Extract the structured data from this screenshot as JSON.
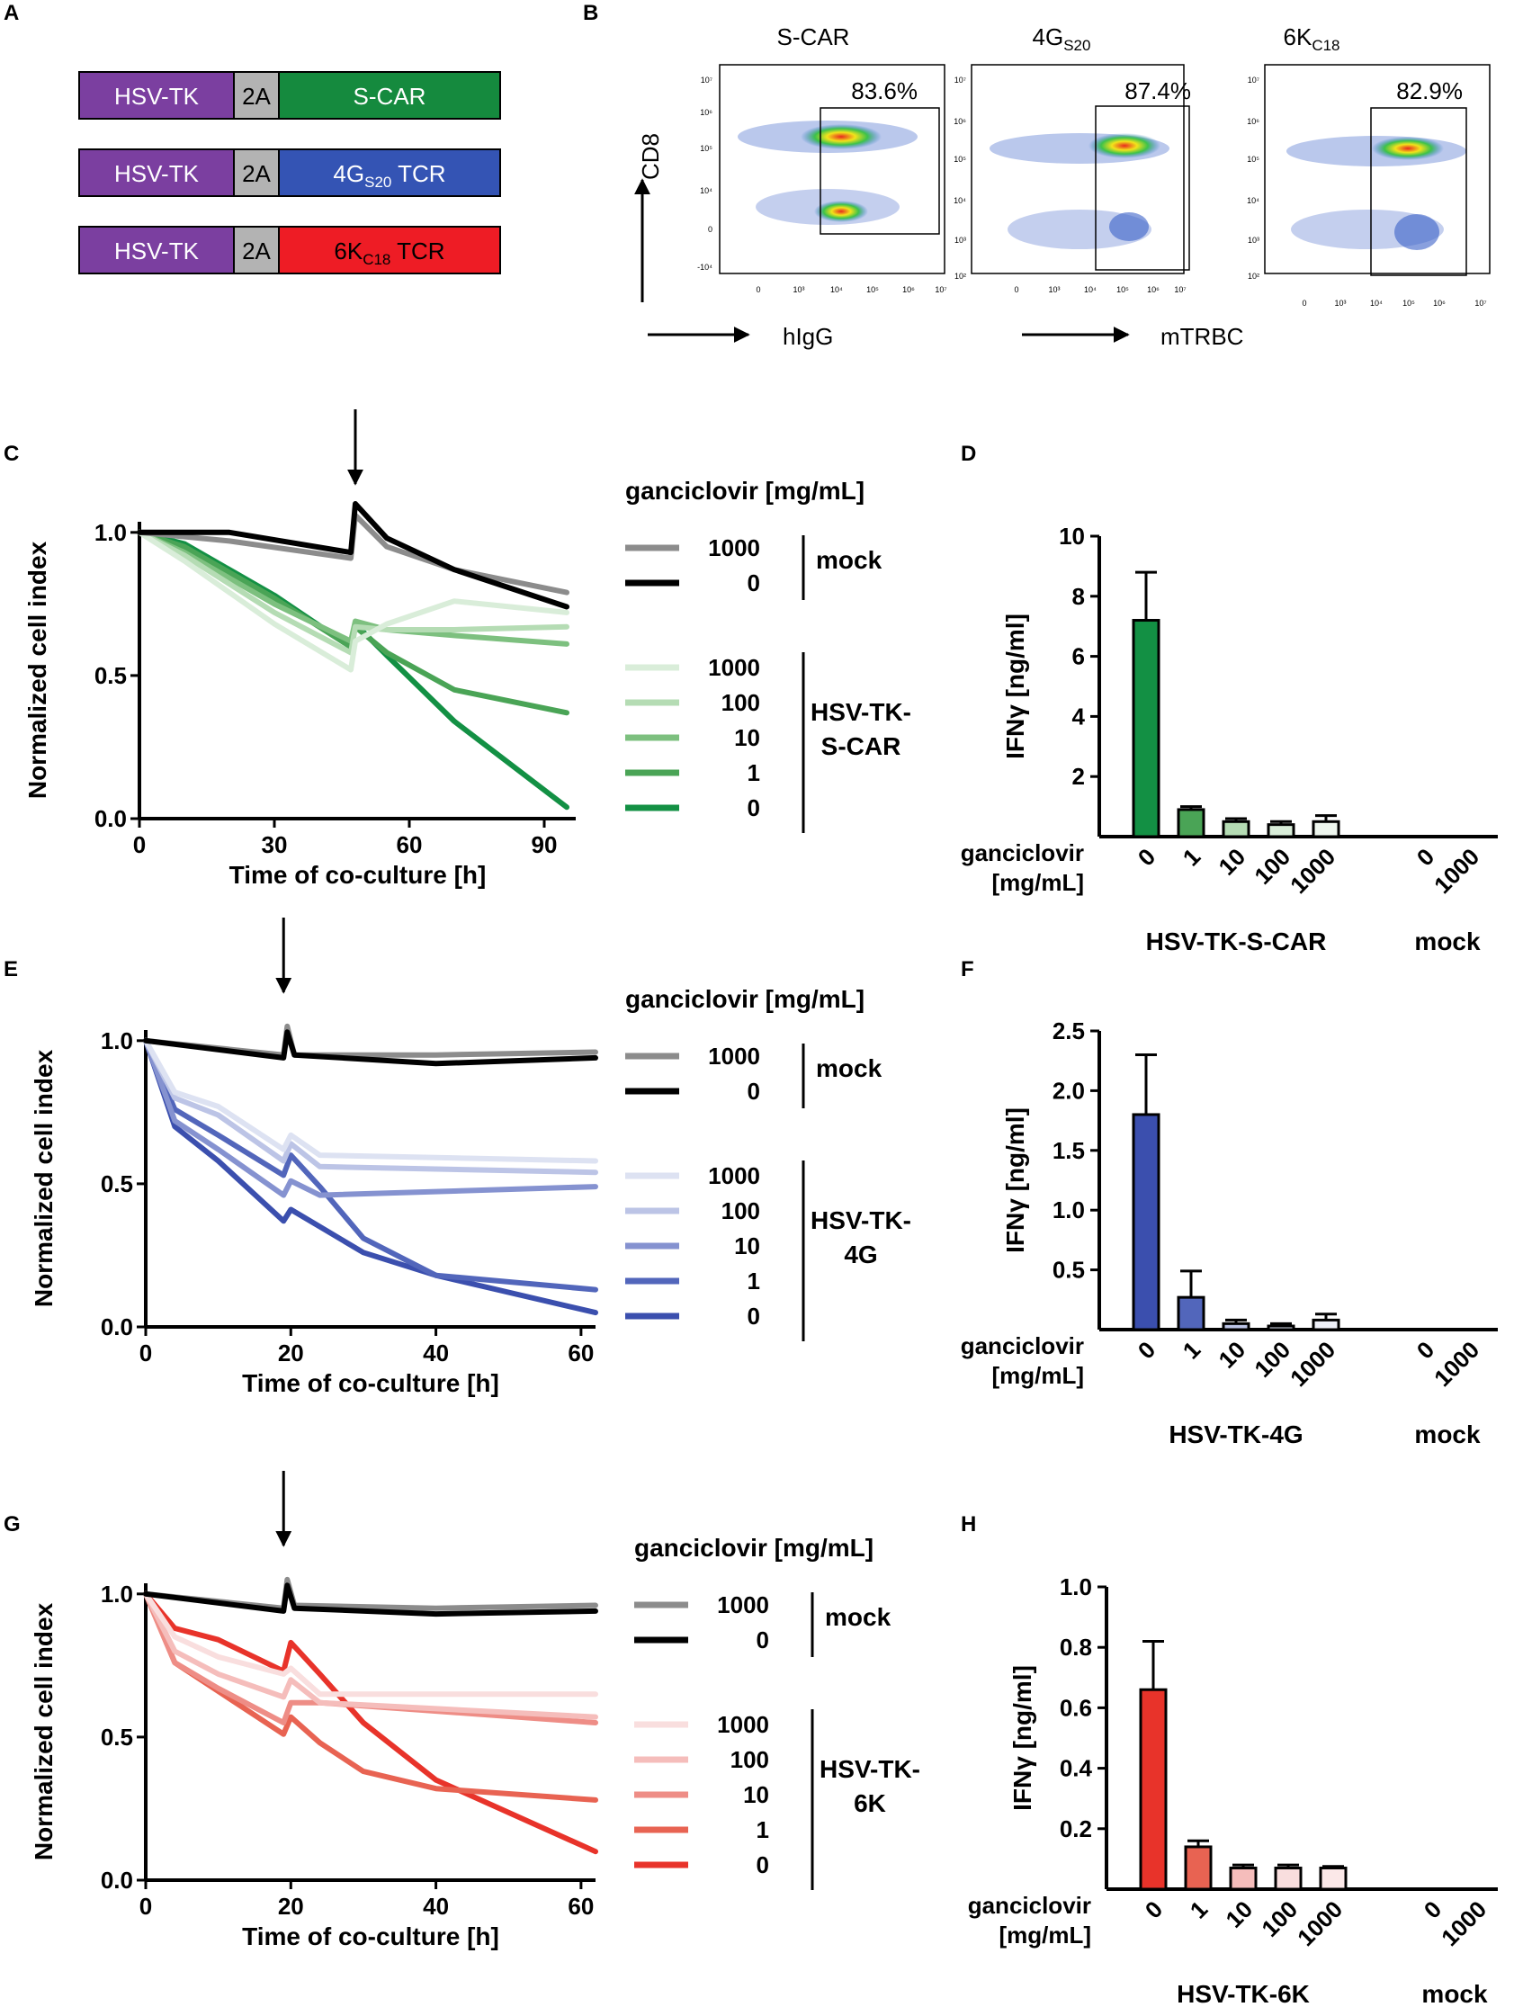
{
  "panels": {
    "A": "A",
    "B": "B",
    "C": "C",
    "D": "D",
    "E": "E",
    "F": "F",
    "G": "G",
    "H": "H"
  },
  "constructs": [
    {
      "tk": "HSV-TK",
      "twoA": "2A",
      "receptor": "S-CAR",
      "sub": "",
      "suffix": "",
      "color": "#158a3e"
    },
    {
      "tk": "HSV-TK",
      "twoA": "2A",
      "receptor": "4G",
      "sub": "S20",
      "suffix": " TCR",
      "color": "#3454b4"
    },
    {
      "tk": "HSV-TK",
      "twoA": "2A",
      "receptor": "6K",
      "sub": "C18",
      "suffix": " TCR",
      "color": "#ee1c25"
    }
  ],
  "colors": {
    "tk": "#7b3fa0",
    "twoA": "#b3b3b3"
  },
  "flow": {
    "titles": [
      {
        "main": "S-CAR",
        "sub": ""
      },
      {
        "main": "4G",
        "sub": "S20"
      },
      {
        "main": "6K",
        "sub": "C18"
      }
    ],
    "percents": [
      "83.6%",
      "87.4%",
      "82.9%"
    ],
    "y_axis_label": "CD8",
    "x_axis_labels": [
      "hIgG",
      "mTRBC"
    ],
    "x_ticks": [
      "0",
      "10³",
      "10⁴",
      "10⁵",
      "10⁶",
      "10⁷"
    ],
    "y_ticks_first": [
      "10⁷",
      "10⁶",
      "10⁵",
      "10⁴",
      "0",
      "-10⁴"
    ],
    "y_ticks_other": [
      "10⁷",
      "10⁶",
      "10⁵",
      "10⁴",
      "10³",
      "10²"
    ]
  },
  "line_charts": [
    {
      "id": "C",
      "x_ticks": [
        0,
        30,
        60,
        90
      ],
      "xlim": [
        0,
        97
      ],
      "ylim": [
        0,
        1.1
      ],
      "y_ticks": [
        "0.0",
        "0.5",
        "1.0"
      ],
      "ylabel": "Normalized cell index",
      "xlabel": "Time of co-culture [h]",
      "legend_title": "ganciclovir [mg/mL]",
      "mock_group": "mock",
      "car_group": "HSV-TK-\nS-CAR",
      "arrow_x": 48,
      "spike_x": 47,
      "mock_series": [
        {
          "label": "1000",
          "color": "#8c8c8c",
          "points": [
            [
              0,
              1.0
            ],
            [
              20,
              0.97
            ],
            [
              47,
              0.91
            ],
            [
              48,
              1.06
            ],
            [
              55,
              0.95
            ],
            [
              70,
              0.87
            ],
            [
              95,
              0.79
            ]
          ]
        },
        {
          "label": "0",
          "color": "#000000",
          "points": [
            [
              0,
              1.0
            ],
            [
              20,
              1.0
            ],
            [
              47,
              0.93
            ],
            [
              48,
              1.1
            ],
            [
              55,
              0.98
            ],
            [
              70,
              0.87
            ],
            [
              95,
              0.74
            ]
          ]
        }
      ],
      "treated_series": [
        {
          "label": "1000",
          "color": "#d9edd9",
          "points": [
            [
              0,
              1.0
            ],
            [
              10,
              0.9
            ],
            [
              30,
              0.68
            ],
            [
              47,
              0.52
            ],
            [
              48,
              0.62
            ],
            [
              55,
              0.68
            ],
            [
              70,
              0.76
            ],
            [
              95,
              0.72
            ]
          ]
        },
        {
          "label": "100",
          "color": "#b5dcb4",
          "points": [
            [
              0,
              1.0
            ],
            [
              10,
              0.92
            ],
            [
              30,
              0.72
            ],
            [
              47,
              0.58
            ],
            [
              48,
              0.67
            ],
            [
              55,
              0.66
            ],
            [
              70,
              0.66
            ],
            [
              95,
              0.67
            ]
          ]
        },
        {
          "label": "10",
          "color": "#7dc07f",
          "points": [
            [
              0,
              1.0
            ],
            [
              10,
              0.93
            ],
            [
              30,
              0.75
            ],
            [
              47,
              0.62
            ],
            [
              48,
              0.69
            ],
            [
              55,
              0.66
            ],
            [
              70,
              0.64
            ],
            [
              95,
              0.61
            ]
          ]
        },
        {
          "label": "1",
          "color": "#4aa456",
          "points": [
            [
              0,
              1.0
            ],
            [
              10,
              0.95
            ],
            [
              30,
              0.77
            ],
            [
              47,
              0.6
            ],
            [
              48,
              0.67
            ],
            [
              55,
              0.58
            ],
            [
              70,
              0.45
            ],
            [
              95,
              0.37
            ]
          ]
        },
        {
          "label": "0",
          "color": "#139044",
          "points": [
            [
              0,
              1.0
            ],
            [
              10,
              0.96
            ],
            [
              30,
              0.78
            ],
            [
              47,
              0.6
            ],
            [
              48,
              0.68
            ],
            [
              55,
              0.57
            ],
            [
              70,
              0.34
            ],
            [
              95,
              0.04
            ]
          ]
        }
      ]
    },
    {
      "id": "E",
      "x_ticks": [
        0,
        20,
        40,
        60
      ],
      "xlim": [
        0,
        62
      ],
      "ylim": [
        0,
        1.1
      ],
      "y_ticks": [
        "0.0",
        "0.5",
        "1.0"
      ],
      "ylabel": "Normalized cell index",
      "xlabel": "Time of co-culture [h]",
      "legend_title": "ganciclovir [mg/mL]",
      "mock_group": "mock",
      "car_group": "HSV-TK-\n4G",
      "arrow_x": 19,
      "spike_x": 19.5,
      "mock_series": [
        {
          "label": "1000",
          "color": "#8c8c8c",
          "points": [
            [
              0,
              1.0
            ],
            [
              19,
              0.95
            ],
            [
              19.5,
              1.05
            ],
            [
              20.5,
              0.95
            ],
            [
              40,
              0.95
            ],
            [
              62,
              0.96
            ]
          ]
        },
        {
          "label": "0",
          "color": "#000000",
          "points": [
            [
              0,
              1.0
            ],
            [
              19,
              0.94
            ],
            [
              19.5,
              1.03
            ],
            [
              20.5,
              0.95
            ],
            [
              40,
              0.92
            ],
            [
              62,
              0.94
            ]
          ]
        }
      ],
      "treated_series": [
        {
          "label": "1000",
          "color": "#dde2f2",
          "points": [
            [
              0,
              1.0
            ],
            [
              4,
              0.82
            ],
            [
              10,
              0.77
            ],
            [
              19,
              0.62
            ],
            [
              20,
              0.67
            ],
            [
              24,
              0.6
            ],
            [
              62,
              0.58
            ]
          ]
        },
        {
          "label": "100",
          "color": "#bcc4e6",
          "points": [
            [
              0,
              1.0
            ],
            [
              4,
              0.8
            ],
            [
              10,
              0.74
            ],
            [
              19,
              0.58
            ],
            [
              20,
              0.64
            ],
            [
              24,
              0.56
            ],
            [
              62,
              0.54
            ]
          ]
        },
        {
          "label": "10",
          "color": "#8592d0",
          "points": [
            [
              0,
              1.0
            ],
            [
              4,
              0.72
            ],
            [
              10,
              0.62
            ],
            [
              19,
              0.46
            ],
            [
              20,
              0.51
            ],
            [
              24,
              0.46
            ],
            [
              62,
              0.49
            ]
          ]
        },
        {
          "label": "1",
          "color": "#5266bb",
          "points": [
            [
              0,
              1.0
            ],
            [
              4,
              0.76
            ],
            [
              10,
              0.67
            ],
            [
              19,
              0.53
            ],
            [
              20,
              0.6
            ],
            [
              24,
              0.49
            ],
            [
              30,
              0.31
            ],
            [
              40,
              0.18
            ],
            [
              62,
              0.13
            ]
          ]
        },
        {
          "label": "0",
          "color": "#3b4fae",
          "points": [
            [
              0,
              1.0
            ],
            [
              4,
              0.7
            ],
            [
              10,
              0.58
            ],
            [
              19,
              0.37
            ],
            [
              20,
              0.41
            ],
            [
              24,
              0.35
            ],
            [
              30,
              0.26
            ],
            [
              40,
              0.18
            ],
            [
              62,
              0.05
            ]
          ]
        }
      ]
    },
    {
      "id": "G",
      "x_ticks": [
        0,
        20,
        40,
        60
      ],
      "xlim": [
        0,
        62
      ],
      "ylim": [
        0,
        1.1
      ],
      "y_ticks": [
        "0.0",
        "0.5",
        "1.0"
      ],
      "ylabel": "Normalized cell index",
      "xlabel": "Time of co-culture [h]",
      "legend_title": "ganciclovir [mg/mL]",
      "mock_group": "mock",
      "car_group": "HSV-TK-\n6K",
      "arrow_x": 19,
      "spike_x": 19.5,
      "mock_series": [
        {
          "label": "1000",
          "color": "#8c8c8c",
          "points": [
            [
              0,
              1.0
            ],
            [
              19,
              0.95
            ],
            [
              19.5,
              1.05
            ],
            [
              20.5,
              0.96
            ],
            [
              40,
              0.95
            ],
            [
              62,
              0.96
            ]
          ]
        },
        {
          "label": "0",
          "color": "#000000",
          "points": [
            [
              0,
              1.0
            ],
            [
              19,
              0.94
            ],
            [
              19.5,
              1.03
            ],
            [
              20.5,
              0.95
            ],
            [
              40,
              0.93
            ],
            [
              62,
              0.94
            ]
          ]
        }
      ],
      "treated_series": [
        {
          "label": "1000",
          "color": "#f9dede",
          "points": [
            [
              0,
              1.0
            ],
            [
              4,
              0.85
            ],
            [
              10,
              0.78
            ],
            [
              19,
              0.72
            ],
            [
              20,
              0.74
            ],
            [
              24,
              0.65
            ],
            [
              62,
              0.65
            ]
          ]
        },
        {
          "label": "100",
          "color": "#f5bdbb",
          "points": [
            [
              0,
              1.0
            ],
            [
              4,
              0.8
            ],
            [
              10,
              0.72
            ],
            [
              19,
              0.64
            ],
            [
              20,
              0.7
            ],
            [
              24,
              0.62
            ],
            [
              62,
              0.57
            ]
          ]
        },
        {
          "label": "10",
          "color": "#ee8d86",
          "points": [
            [
              0,
              1.0
            ],
            [
              4,
              0.76
            ],
            [
              10,
              0.67
            ],
            [
              19,
              0.55
            ],
            [
              20,
              0.62
            ],
            [
              24,
              0.62
            ],
            [
              62,
              0.55
            ]
          ]
        },
        {
          "label": "1",
          "color": "#e86352",
          "points": [
            [
              0,
              1.0
            ],
            [
              4,
              0.76
            ],
            [
              10,
              0.66
            ],
            [
              19,
              0.51
            ],
            [
              20,
              0.57
            ],
            [
              24,
              0.48
            ],
            [
              30,
              0.38
            ],
            [
              40,
              0.32
            ],
            [
              62,
              0.28
            ]
          ]
        },
        {
          "label": "0",
          "color": "#e8332a",
          "points": [
            [
              0,
              1.0
            ],
            [
              4,
              0.88
            ],
            [
              10,
              0.84
            ],
            [
              19,
              0.73
            ],
            [
              20,
              0.83
            ],
            [
              24,
              0.72
            ],
            [
              30,
              0.55
            ],
            [
              40,
              0.35
            ],
            [
              62,
              0.1
            ]
          ]
        }
      ]
    }
  ],
  "bar_charts": [
    {
      "id": "D",
      "ylabel": "IFNγ [ng/ml]",
      "ylim": [
        0,
        10
      ],
      "y_ticks": [
        2,
        4,
        6,
        8,
        10
      ],
      "row_label": "ganciclovir\n[mg/mL]",
      "categories": [
        "0",
        "1",
        "10",
        "100",
        "1000",
        "0",
        "1000"
      ],
      "values": [
        7.2,
        0.9,
        0.5,
        0.4,
        0.5,
        0,
        0
      ],
      "errors": [
        1.6,
        0.1,
        0.1,
        0.1,
        0.2,
        0,
        0
      ],
      "colors": [
        "#139044",
        "#4aa456",
        "#b5dcb4",
        "#d9edd9",
        "#eef6ee",
        "#ffffff",
        "#ffffff"
      ],
      "group_labels": [
        "HSV-TK-S-CAR",
        "mock"
      ]
    },
    {
      "id": "F",
      "ylabel": "IFNγ [ng/ml]",
      "ylim": [
        0,
        2.5
      ],
      "y_ticks": [
        0.5,
        1.0,
        1.5,
        2.0,
        2.5
      ],
      "row_label": "ganciclovir\n[mg/mL]",
      "categories": [
        "0",
        "1",
        "10",
        "100",
        "1000",
        "0",
        "1000"
      ],
      "values": [
        1.8,
        0.27,
        0.05,
        0.03,
        0.08,
        0,
        0
      ],
      "errors": [
        0.5,
        0.22,
        0.03,
        0.02,
        0.05,
        0,
        0
      ],
      "colors": [
        "#3b4fae",
        "#5266bb",
        "#bcc4e6",
        "#dde2f2",
        "#eef0f8",
        "#ffffff",
        "#ffffff"
      ],
      "group_labels": [
        "HSV-TK-4G",
        "mock"
      ]
    },
    {
      "id": "H",
      "ylabel": "IFNγ [ng/ml]",
      "ylim": [
        0,
        1.0
      ],
      "y_ticks": [
        0.2,
        0.4,
        0.6,
        0.8,
        1.0
      ],
      "row_label": "ganciclovir\n[mg/mL]",
      "categories": [
        "0",
        "1",
        "10",
        "100",
        "1000",
        "0",
        "1000"
      ],
      "values": [
        0.66,
        0.14,
        0.07,
        0.07,
        0.07,
        0,
        0
      ],
      "errors": [
        0.16,
        0.02,
        0.01,
        0.01,
        0.005,
        0,
        0
      ],
      "colors": [
        "#e8332a",
        "#e86352",
        "#f5bdbb",
        "#f9dede",
        "#fbe8e8",
        "#ffffff",
        "#ffffff"
      ],
      "group_labels": [
        "HSV-TK-6K",
        "mock"
      ]
    }
  ]
}
